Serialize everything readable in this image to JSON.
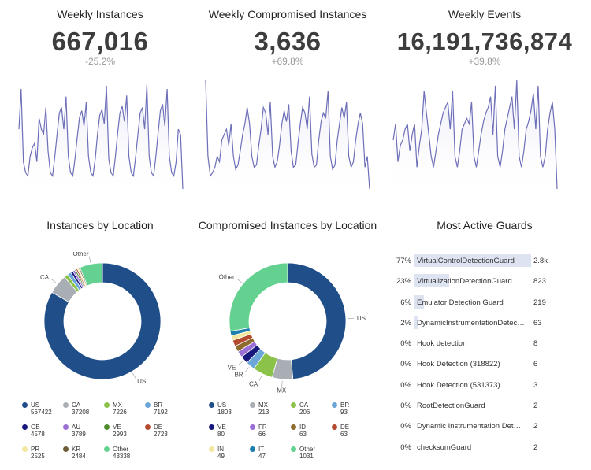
{
  "kpis": [
    {
      "title": "Weekly Instances",
      "value": "667,016",
      "change": "-25.2%"
    },
    {
      "title": "Weekly Compromised Instances",
      "value": "3,636",
      "change": "+69.8%"
    },
    {
      "title": "Weekly Events",
      "value": "16,191,736,874",
      "change": "+39.8%"
    }
  ],
  "panels": {
    "location_title": "Instances by Location",
    "compromised_title": "Compromised Instances by Location",
    "guards_title": "Most Active Guards"
  },
  "colors": {
    "US": "#1f4e89",
    "CA": "#a9aeb5",
    "MX": "#8bc34a",
    "BR": "#6aa6d8",
    "GB": "#17187e",
    "AU": "#9b6fd6",
    "VE": "#4f8a2b",
    "DE": "#b44a2f",
    "PR": "#f1e79e",
    "KR": "#6e5b3a",
    "Other": "#63d18f",
    "FR": "#9b6fd6",
    "ID": "#8e6b2e",
    "IN": "#f1e79e",
    "IT": "#1d7fb0",
    "spark_line": "#6d6fb8",
    "spark_fill": "#e8e8f7",
    "guard_bar": "#dde3f1"
  },
  "chart_data": [
    {
      "type": "line",
      "title": "Weekly Instances",
      "series": [
        {
          "values": [
            0.55,
            0.92,
            0.25,
            0.15,
            0.12,
            0.3,
            0.38,
            0.42,
            0.25,
            0.65,
            0.55,
            0.5,
            0.75,
            0.35,
            0.15,
            0.12,
            0.3,
            0.5,
            0.7,
            0.75,
            0.55,
            0.85,
            0.3,
            0.15,
            0.12,
            0.28,
            0.48,
            0.66,
            0.72,
            0.58,
            0.8,
            0.3,
            0.15,
            0.12,
            0.28,
            0.5,
            0.68,
            0.73,
            0.6,
            0.95,
            0.28,
            0.15,
            0.12,
            0.3,
            0.52,
            0.7,
            0.76,
            0.62,
            0.86,
            0.3,
            0.15,
            0.12,
            0.3,
            0.5,
            0.7,
            0.75,
            0.55,
            0.96,
            0.3,
            0.15,
            0.12,
            0.3,
            0.52,
            0.72,
            0.78,
            0.58,
            0.92,
            0.3,
            0.15,
            0.12,
            0.25,
            0.55,
            0.5,
            0.0
          ]
        }
      ]
    },
    {
      "type": "line",
      "title": "Weekly Compromised Instances",
      "series": [
        {
          "values": [
            1.0,
            0.3,
            0.12,
            0.15,
            0.2,
            0.3,
            0.25,
            0.45,
            0.5,
            0.55,
            0.4,
            0.6,
            0.3,
            0.18,
            0.22,
            0.35,
            0.5,
            0.6,
            0.75,
            0.6,
            0.3,
            0.2,
            0.22,
            0.4,
            0.55,
            0.75,
            0.7,
            0.5,
            0.8,
            0.3,
            0.2,
            0.25,
            0.4,
            0.6,
            0.72,
            0.62,
            0.78,
            0.35,
            0.2,
            0.22,
            0.42,
            0.6,
            0.75,
            0.7,
            0.55,
            0.85,
            0.32,
            0.2,
            0.22,
            0.45,
            0.62,
            0.7,
            0.65,
            0.9,
            0.3,
            0.18,
            0.22,
            0.45,
            0.6,
            0.75,
            0.65,
            0.8,
            0.3,
            0.2,
            0.25,
            0.45,
            0.6,
            0.7,
            0.6,
            0.2,
            0.3,
            0.0
          ]
        }
      ]
    },
    {
      "type": "line",
      "title": "Weekly Events",
      "series": [
        {
          "values": [
            0.45,
            0.6,
            0.25,
            0.4,
            0.45,
            0.55,
            0.6,
            0.35,
            0.5,
            0.6,
            0.2,
            0.4,
            0.55,
            0.9,
            0.7,
            0.5,
            0.3,
            0.2,
            0.35,
            0.5,
            0.6,
            0.7,
            0.75,
            0.8,
            0.55,
            0.9,
            0.3,
            0.2,
            0.35,
            0.55,
            0.6,
            0.65,
            0.6,
            0.8,
            0.3,
            0.2,
            0.35,
            0.5,
            0.62,
            0.7,
            0.75,
            0.85,
            0.5,
            0.95,
            0.3,
            0.2,
            0.35,
            0.55,
            0.65,
            0.75,
            0.85,
            0.55,
            1.0,
            0.3,
            0.2,
            0.35,
            0.55,
            0.62,
            0.72,
            0.88,
            0.55,
            0.95,
            0.3,
            0.2,
            0.3,
            0.55,
            0.7,
            0.8,
            0.55,
            0.0
          ]
        }
      ]
    },
    {
      "type": "pie",
      "title": "Instances by Location",
      "slices": [
        {
          "label": "US",
          "value": 567422,
          "color": "#1f4e89"
        },
        {
          "label": "CA",
          "value": 37208,
          "color": "#a9aeb5"
        },
        {
          "label": "MX",
          "value": 7226,
          "color": "#8bc34a"
        },
        {
          "label": "BR",
          "value": 7192,
          "color": "#6aa6d8"
        },
        {
          "label": "GB",
          "value": 4578,
          "color": "#17187e"
        },
        {
          "label": "AU",
          "value": 3789,
          "color": "#9b6fd6"
        },
        {
          "label": "VE",
          "value": 2993,
          "color": "#4f8a2b"
        },
        {
          "label": "DE",
          "value": 2723,
          "color": "#b44a2f"
        },
        {
          "label": "PR",
          "value": 2525,
          "color": "#f1e79e"
        },
        {
          "label": "KR",
          "value": 2484,
          "color": "#6e5b3a"
        },
        {
          "label": "Other",
          "value": 43338,
          "color": "#63d18f"
        }
      ],
      "outer_labels": [
        "US",
        "CA",
        "Other"
      ]
    },
    {
      "type": "pie",
      "title": "Compromised Instances by Location",
      "slices": [
        {
          "label": "US",
          "value": 1803,
          "color": "#1f4e89"
        },
        {
          "label": "MX",
          "value": 213,
          "color": "#a9aeb5"
        },
        {
          "label": "CA",
          "value": 206,
          "color": "#8bc34a"
        },
        {
          "label": "BR",
          "value": 93,
          "color": "#6aa6d8"
        },
        {
          "label": "VE",
          "value": 80,
          "color": "#17187e"
        },
        {
          "label": "FR",
          "value": 66,
          "color": "#9b6fd6"
        },
        {
          "label": "ID",
          "value": 63,
          "color": "#8e6b2e"
        },
        {
          "label": "DE",
          "value": 63,
          "color": "#b44a2f"
        },
        {
          "label": "IN",
          "value": 49,
          "color": "#f1e79e"
        },
        {
          "label": "IT",
          "value": 47,
          "color": "#1d7fb0"
        },
        {
          "label": "Other",
          "value": 1031,
          "color": "#63d18f"
        }
      ],
      "outer_labels": [
        "US",
        "MX",
        "CA",
        "BR",
        "VE",
        "Other"
      ]
    },
    {
      "type": "bar",
      "title": "Most Active Guards",
      "categories": [
        "VirtualControlDetectionGuard",
        "VirtualizationDetectionGuard",
        "Emulator Detection Guard",
        "DynamicInstrumentationDetec…",
        "Hook detection",
        "Hook Detection (318822)",
        "Hook Detection (531373)",
        "RootDetectionGuard",
        "Dynamic Instrumentation Det…",
        "checksumGuard"
      ],
      "percent": [
        "77%",
        "23%",
        "6%",
        "2%",
        "0%",
        "0%",
        "0%",
        "0%",
        "0%",
        "0%"
      ],
      "counts": [
        "2.8k",
        "823",
        "219",
        "63",
        "8",
        "6",
        "3",
        "2",
        "2",
        "2"
      ],
      "share": [
        0.77,
        0.23,
        0.06,
        0.02,
        0,
        0,
        0,
        0,
        0,
        0
      ]
    }
  ]
}
